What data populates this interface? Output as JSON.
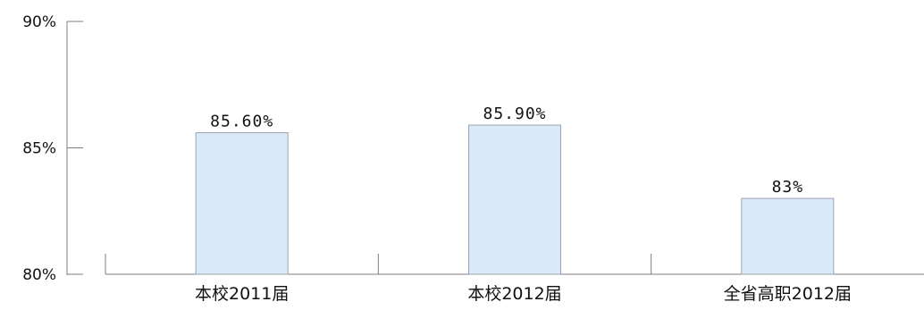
{
  "chart_data": {
    "type": "bar",
    "categories": [
      "本校2011届",
      "本校2012届",
      "全省高职2012届"
    ],
    "values": [
      85.6,
      85.9,
      83
    ],
    "data_labels": [
      "85.60%",
      "85.90%",
      "83%"
    ],
    "y_ticks": [
      {
        "value": 90,
        "label": "90%"
      },
      {
        "value": 85,
        "label": "85%"
      },
      {
        "value": 80,
        "label": "80%"
      }
    ],
    "ylim": [
      80,
      90
    ],
    "grid": false,
    "colors": {
      "bar_fill": "#dbeaf8",
      "bar_stroke": "#9aa4ae",
      "axis": "#7f7f7f"
    }
  }
}
